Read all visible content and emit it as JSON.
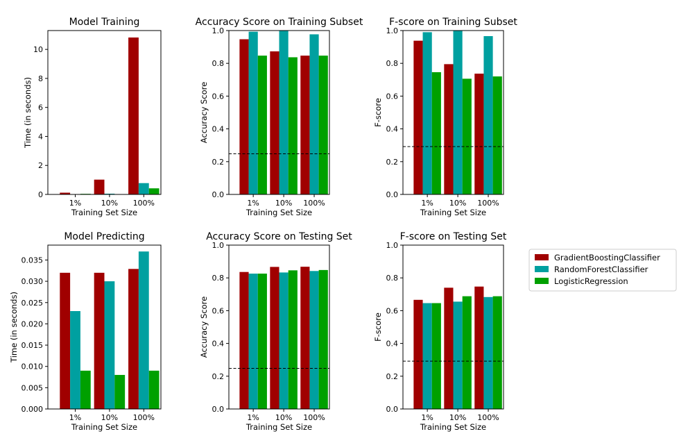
{
  "chart_data": [
    {
      "type": "bar",
      "title": "Model Training",
      "xlabel": "Training Set Size",
      "ylabel": "Time (in seconds)",
      "categories": [
        "1%",
        "10%",
        "100%"
      ],
      "ylim": [
        0,
        11.3
      ],
      "yticks": [
        "0",
        "2",
        "4",
        "6",
        "8",
        "10"
      ],
      "yticks_values": [
        0,
        2,
        4,
        6,
        8,
        10
      ],
      "series": [
        {
          "name": "GradientBoostingClassifier",
          "values": [
            0.12,
            1.02,
            10.82
          ]
        },
        {
          "name": "RandomForestClassifier",
          "values": [
            0.02,
            0.05,
            0.78
          ]
        },
        {
          "name": "LogisticRegression",
          "values": [
            0.04,
            0.02,
            0.42
          ]
        }
      ]
    },
    {
      "type": "bar",
      "title": "Accuracy Score on Training Subset",
      "xlabel": "Training Set Size",
      "ylabel": "Accuracy Score",
      "categories": [
        "1%",
        "10%",
        "100%"
      ],
      "ylim": [
        0,
        1.0
      ],
      "yticks": [
        "0.0",
        "0.2",
        "0.4",
        "0.6",
        "0.8",
        "1.0"
      ],
      "yticks_values": [
        0,
        0.2,
        0.4,
        0.6,
        0.8,
        1.0
      ],
      "hline": 0.248,
      "series": [
        {
          "name": "GradientBoostingClassifier",
          "values": [
            0.947,
            0.873,
            0.847
          ]
        },
        {
          "name": "RandomForestClassifier",
          "values": [
            0.993,
            1.0,
            0.977
          ]
        },
        {
          "name": "LogisticRegression",
          "values": [
            0.847,
            0.837,
            0.847
          ]
        }
      ]
    },
    {
      "type": "bar",
      "title": "F-score on Training Subset",
      "xlabel": "Training Set Size",
      "ylabel": "F-score",
      "categories": [
        "1%",
        "10%",
        "100%"
      ],
      "ylim": [
        0,
        1.0
      ],
      "yticks": [
        "0.0",
        "0.2",
        "0.4",
        "0.6",
        "0.8",
        "1.0"
      ],
      "yticks_values": [
        0,
        0.2,
        0.4,
        0.6,
        0.8,
        1.0
      ],
      "hline": 0.292,
      "series": [
        {
          "name": "GradientBoostingClassifier",
          "values": [
            0.938,
            0.795,
            0.737
          ]
        },
        {
          "name": "RandomForestClassifier",
          "values": [
            0.99,
            1.0,
            0.966
          ]
        },
        {
          "name": "LogisticRegression",
          "values": [
            0.746,
            0.706,
            0.72
          ]
        }
      ]
    },
    {
      "type": "bar",
      "title": "Model Predicting",
      "xlabel": "Training Set Size",
      "ylabel": "Time (in seconds)",
      "categories": [
        "1%",
        "10%",
        "100%"
      ],
      "ylim": [
        0,
        0.0385
      ],
      "yticks": [
        "0.000",
        "0.005",
        "0.010",
        "0.015",
        "0.020",
        "0.025",
        "0.030",
        "0.035"
      ],
      "yticks_values": [
        0,
        0.005,
        0.01,
        0.015,
        0.02,
        0.025,
        0.03,
        0.035
      ],
      "series": [
        {
          "name": "GradientBoostingClassifier",
          "values": [
            0.032,
            0.032,
            0.0329
          ]
        },
        {
          "name": "RandomForestClassifier",
          "values": [
            0.023,
            0.03,
            0.037
          ]
        },
        {
          "name": "LogisticRegression",
          "values": [
            0.009,
            0.008,
            0.009
          ]
        }
      ]
    },
    {
      "type": "bar",
      "title": "Accuracy Score on Testing Set",
      "xlabel": "Training Set Size",
      "ylabel": "Accuracy Score",
      "categories": [
        "1%",
        "10%",
        "100%"
      ],
      "ylim": [
        0,
        1.0
      ],
      "yticks": [
        "0.0",
        "0.2",
        "0.4",
        "0.6",
        "0.8",
        "1.0"
      ],
      "yticks_values": [
        0,
        0.2,
        0.4,
        0.6,
        0.8,
        1.0
      ],
      "hline": 0.248,
      "series": [
        {
          "name": "GradientBoostingClassifier",
          "values": [
            0.836,
            0.867,
            0.868
          ]
        },
        {
          "name": "RandomForestClassifier",
          "values": [
            0.826,
            0.833,
            0.842
          ]
        },
        {
          "name": "LogisticRegression",
          "values": [
            0.826,
            0.846,
            0.848
          ]
        }
      ]
    },
    {
      "type": "bar",
      "title": "F-score on Testing Set",
      "xlabel": "Training Set Size",
      "ylabel": "F-score",
      "categories": [
        "1%",
        "10%",
        "100%"
      ],
      "ylim": [
        0,
        1.0
      ],
      "yticks": [
        "0.0",
        "0.2",
        "0.4",
        "0.6",
        "0.8",
        "1.0"
      ],
      "yticks_values": [
        0,
        0.2,
        0.4,
        0.6,
        0.8,
        1.0
      ],
      "hline": 0.292,
      "series": [
        {
          "name": "GradientBoostingClassifier",
          "values": [
            0.666,
            0.74,
            0.747
          ]
        },
        {
          "name": "RandomForestClassifier",
          "values": [
            0.646,
            0.655,
            0.683
          ]
        },
        {
          "name": "LogisticRegression",
          "values": [
            0.646,
            0.688,
            0.688
          ]
        }
      ]
    }
  ],
  "legend": {
    "placement": "right",
    "entries": [
      {
        "label": "GradientBoostingClassifier",
        "color": "#a00000"
      },
      {
        "label": "RandomForestClassifier",
        "color": "#00a0a0"
      },
      {
        "label": "LogisticRegression",
        "color": "#00a000"
      }
    ]
  },
  "colors": {
    "GradientBoostingClassifier": "#a00000",
    "RandomForestClassifier": "#00a0a0",
    "LogisticRegression": "#00a000",
    "hline": "#000000"
  }
}
